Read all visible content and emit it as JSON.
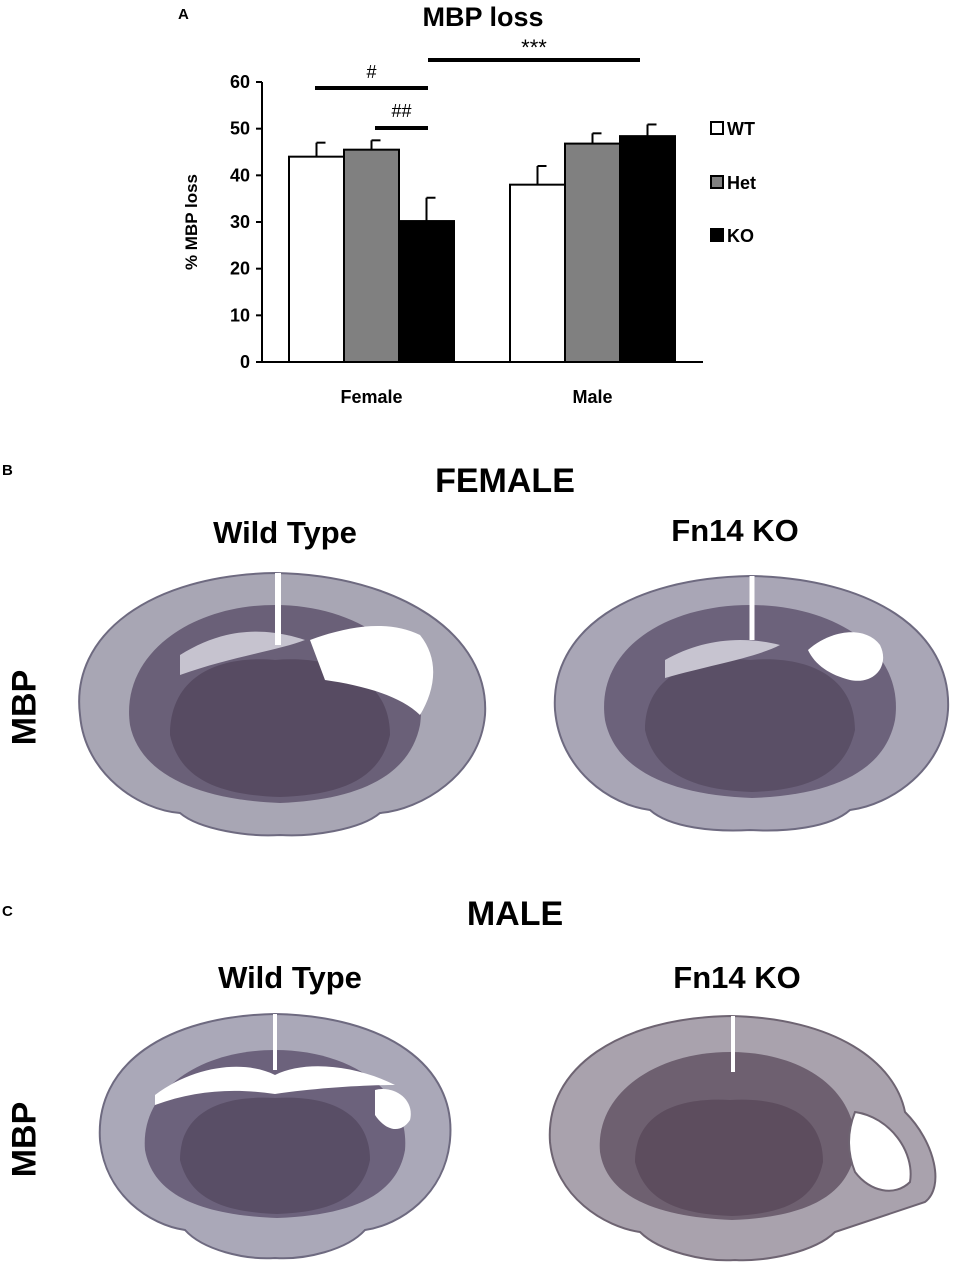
{
  "panels": {
    "a": {
      "letter": "A"
    },
    "b": {
      "letter": "B",
      "title": "FEMALE",
      "left_label": "Wild Type",
      "right_label": "Fn14 KO",
      "row_label": "MBP"
    },
    "c": {
      "letter": "C",
      "title": "MALE",
      "left_label": "Wild Type",
      "right_label": "Fn14 KO",
      "row_label": "MBP"
    }
  },
  "chart_data": {
    "type": "bar",
    "title": "MBP loss",
    "ylabel": "% MBP loss",
    "xlabel": "",
    "categories": [
      "Female",
      "Male"
    ],
    "ylim": [
      0,
      60
    ],
    "yticks": [
      0,
      10,
      20,
      30,
      40,
      50,
      60
    ],
    "series": [
      {
        "name": "WT",
        "color": "#ffffff",
        "values": [
          44,
          38
        ],
        "errors": [
          3,
          4
        ]
      },
      {
        "name": "Het",
        "color": "#808080",
        "values": [
          45.5,
          46.8
        ],
        "errors": [
          2,
          2.2
        ]
      },
      {
        "name": "KO",
        "color": "#000000",
        "values": [
          30.2,
          48.4
        ],
        "errors": [
          5,
          2.5
        ]
      }
    ],
    "legend": "right",
    "annotations": [
      {
        "text": "#",
        "from": "Female-WT",
        "to": "Female-KO"
      },
      {
        "text": "##",
        "from": "Female-Het",
        "to": "Female-KO"
      },
      {
        "text": "***",
        "from": "Female-KO",
        "to": "Male-KO"
      }
    ]
  }
}
